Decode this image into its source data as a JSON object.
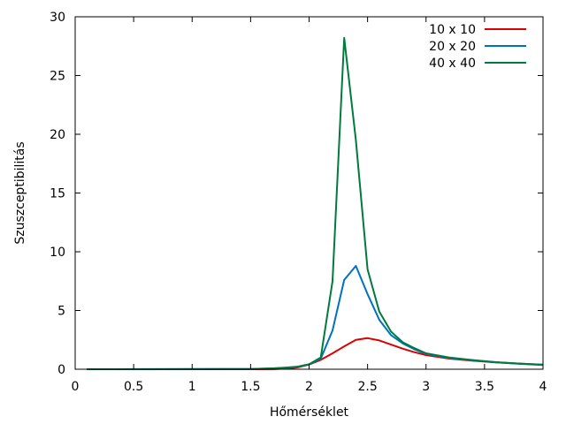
{
  "chart_data": {
    "type": "line",
    "title": "",
    "xlabel": "Hőmérséklet",
    "ylabel": "Szuszceptibilitás",
    "xlim": [
      0,
      4
    ],
    "ylim": [
      0,
      30
    ],
    "xticks": [
      "0",
      "0.5",
      "1",
      "1.5",
      "2",
      "2.5",
      "3",
      "3.5",
      "4"
    ],
    "yticks": [
      "0",
      "5",
      "10",
      "15",
      "20",
      "25",
      "30"
    ],
    "grid": false,
    "legend_position": "top-right",
    "series": [
      {
        "name": "10 x 10",
        "color": "#dd0000",
        "x": [
          0.1,
          1.5,
          1.7,
          1.8,
          1.9,
          2.0,
          2.1,
          2.2,
          2.3,
          2.4,
          2.5,
          2.6,
          2.7,
          2.8,
          2.9,
          3.0,
          3.2,
          3.4,
          3.6,
          3.8,
          4.0
        ],
        "y": [
          0,
          0,
          0.01,
          0.05,
          0.15,
          0.4,
          0.8,
          1.35,
          1.95,
          2.5,
          2.65,
          2.45,
          2.1,
          1.75,
          1.45,
          1.2,
          0.9,
          0.72,
          0.58,
          0.48,
          0.38
        ]
      },
      {
        "name": "20 x 20",
        "color": "#0072bd",
        "x": [
          0.1,
          1.5,
          1.7,
          1.8,
          1.9,
          2.0,
          2.1,
          2.2,
          2.3,
          2.4,
          2.5,
          2.6,
          2.7,
          2.8,
          2.9,
          3.0,
          3.2,
          3.4,
          3.6,
          3.8,
          4.0
        ],
        "y": [
          0,
          0.02,
          0.07,
          0.12,
          0.2,
          0.4,
          0.9,
          3.3,
          7.6,
          8.8,
          6.4,
          4.2,
          2.9,
          2.2,
          1.7,
          1.3,
          0.95,
          0.75,
          0.58,
          0.46,
          0.36
        ]
      },
      {
        "name": "40 x 40",
        "color": "#007a3d",
        "x": [
          0.1,
          1.5,
          1.7,
          1.8,
          1.9,
          2.0,
          2.1,
          2.2,
          2.3,
          2.4,
          2.5,
          2.6,
          2.7,
          2.8,
          2.9,
          3.0,
          3.2,
          3.4,
          3.6,
          3.8,
          4.0
        ],
        "y": [
          0,
          0.02,
          0.08,
          0.14,
          0.22,
          0.42,
          1.0,
          7.5,
          28.2,
          19.5,
          8.5,
          4.9,
          3.2,
          2.3,
          1.8,
          1.35,
          1.0,
          0.78,
          0.6,
          0.48,
          0.38
        ]
      }
    ]
  }
}
